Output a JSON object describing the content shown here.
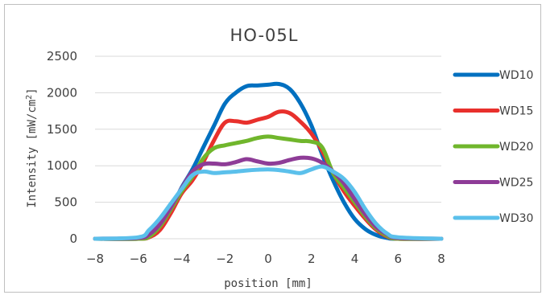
{
  "chart_data": {
    "type": "line",
    "title": "HO-05L",
    "xlabel": "position [mm]",
    "ylabel": "Intensity [mW/cm2]",
    "ylabel_main": "Intensity [mW/cm",
    "ylabel_sup": "2",
    "ylabel_close": "]",
    "xlim": [
      -8,
      8
    ],
    "ylim": [
      0,
      2500
    ],
    "x_ticks": [
      -8,
      -6,
      -4,
      -2,
      0,
      2,
      4,
      6,
      8
    ],
    "y_ticks": [
      0,
      500,
      1000,
      1500,
      2000,
      2500
    ],
    "grid": true,
    "legend_position": "right",
    "series": [
      {
        "name": "WD10",
        "color": "#0070c0",
        "x": [
          -8,
          -6,
          -5.5,
          -5,
          -4.5,
          -4,
          -3.5,
          -3,
          -2.5,
          -2,
          -1.5,
          -1,
          -0.5,
          0,
          0.5,
          1,
          1.5,
          2,
          2.5,
          3,
          3.5,
          4,
          4.5,
          5,
          5.5,
          6,
          8
        ],
        "y": [
          0,
          0,
          30,
          150,
          400,
          700,
          950,
          1250,
          1550,
          1850,
          2000,
          2090,
          2100,
          2110,
          2120,
          2050,
          1850,
          1550,
          1150,
          800,
          500,
          270,
          130,
          50,
          10,
          0,
          0
        ]
      },
      {
        "name": "WD15",
        "color": "#e8302c",
        "x": [
          -8,
          -6,
          -5.5,
          -5,
          -4.5,
          -4,
          -3.5,
          -3,
          -2.5,
          -2,
          -1.5,
          -1,
          -0.5,
          0,
          0.5,
          1,
          1.5,
          2,
          2.5,
          3,
          3.5,
          4,
          4.5,
          5,
          5.5,
          6,
          8
        ],
        "y": [
          0,
          0,
          20,
          120,
          350,
          620,
          800,
          1050,
          1350,
          1590,
          1610,
          1590,
          1630,
          1670,
          1740,
          1720,
          1600,
          1440,
          1200,
          900,
          650,
          450,
          270,
          120,
          30,
          0,
          0
        ]
      },
      {
        "name": "WD20",
        "color": "#70b62c",
        "x": [
          -8,
          -6,
          -5.5,
          -5,
          -4.5,
          -4,
          -3.5,
          -3,
          -2.5,
          -2,
          -1.5,
          -1,
          -0.5,
          0,
          0.5,
          1,
          1.5,
          2,
          2.5,
          3,
          3.5,
          4,
          4.5,
          5,
          5.5,
          6,
          8
        ],
        "y": [
          0,
          0,
          30,
          170,
          400,
          650,
          850,
          1100,
          1240,
          1280,
          1310,
          1340,
          1380,
          1400,
          1380,
          1360,
          1340,
          1330,
          1250,
          900,
          700,
          500,
          300,
          140,
          40,
          0,
          0
        ]
      },
      {
        "name": "WD25",
        "color": "#8e3c97",
        "x": [
          -8,
          -6,
          -5.5,
          -5,
          -4.5,
          -4,
          -3.5,
          -3,
          -2.5,
          -2,
          -1.5,
          -1,
          -0.5,
          0,
          0.5,
          1,
          1.5,
          2,
          2.5,
          3,
          3.5,
          4,
          4.5,
          5,
          5.5,
          6,
          8
        ],
        "y": [
          0,
          10,
          60,
          200,
          430,
          690,
          920,
          1020,
          1030,
          1020,
          1050,
          1090,
          1060,
          1030,
          1040,
          1080,
          1110,
          1100,
          1040,
          920,
          760,
          540,
          330,
          160,
          60,
          10,
          0
        ]
      },
      {
        "name": "WD30",
        "color": "#5bc0eb",
        "x": [
          -8,
          -6,
          -5.5,
          -5,
          -4.5,
          -4,
          -3.5,
          -3,
          -2.5,
          -2,
          -1.5,
          -1,
          -0.5,
          0,
          0.5,
          1,
          1.5,
          2,
          2.5,
          3,
          3.5,
          4,
          4.5,
          5,
          5.5,
          6,
          8
        ],
        "y": [
          0,
          20,
          120,
          280,
          480,
          680,
          870,
          920,
          900,
          910,
          920,
          935,
          945,
          950,
          940,
          920,
          900,
          950,
          990,
          920,
          820,
          640,
          400,
          200,
          70,
          20,
          0
        ]
      }
    ]
  }
}
